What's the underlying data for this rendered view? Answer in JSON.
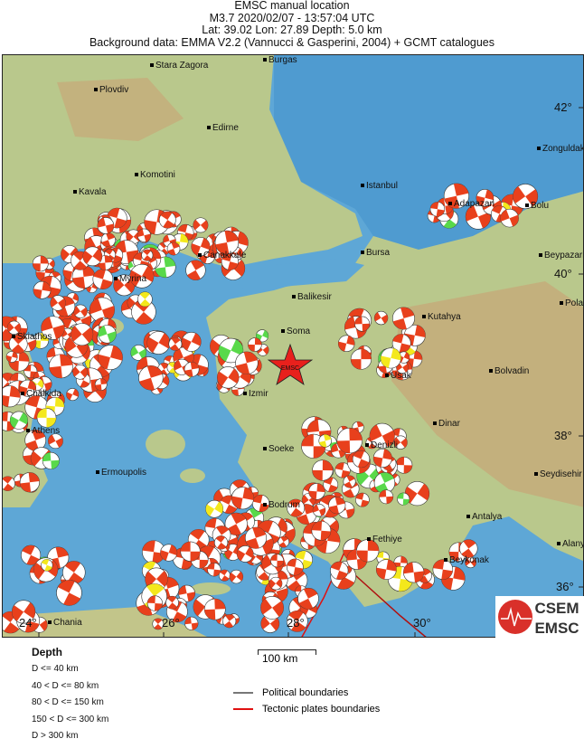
{
  "header": {
    "line1": "EMSC manual location",
    "line2": "M3.7  2020/02/07 - 13:57:04 UTC",
    "line3": "Lat: 39.02    Lon:  27.89     Depth:  5.0 km",
    "line4": "Background data: EMMA V2.2 (Vannucci & Gasperini, 2004) + GCMT catalogues"
  },
  "map": {
    "epicenter_label": "EMSC",
    "cities": [
      "Stara Zagora",
      "Burgas",
      "Plovdiv",
      "Edirne",
      "Komotini",
      "Kavala",
      "Istanbul",
      "Adapazari",
      "Zonguldak",
      "Bolu",
      "Beypazari",
      "Polatli",
      "Canakkale",
      "Bursa",
      "Myrina",
      "Balikesir",
      "Kutahya",
      "Skiathos",
      "Soma",
      "Usak",
      "Bolvadin",
      "Chalkida",
      "Izmir",
      "Athens",
      "Dinar",
      "Denizli",
      "Soeke",
      "Seydisehir",
      "Ermoupolis",
      "Bodrum",
      "Antalya",
      "Fethiye",
      "Alanya",
      "Beykonak",
      "Chania"
    ],
    "latitudes": [
      "42°",
      "40°",
      "38°",
      "36°"
    ],
    "longitudes": [
      "24°",
      "26°",
      "28°",
      "30°"
    ],
    "colors": {
      "sea": "#5ea7d6",
      "land": "#b9c88c",
      "highland": "#c7a878",
      "mechanism": "#e8401c",
      "depth_40_80": "#f4e81c",
      "depth_80_150": "#59d94a",
      "depth_150_300": "#2a3fd4",
      "tectonic": "#e01010",
      "political": "#777777"
    }
  },
  "legend": {
    "title": "Depth",
    "depth_classes": [
      "D <= 40 km",
      "40 < D <= 80 km",
      "80 < D <= 150 km",
      "150 < D <= 300 km",
      "D > 300 km"
    ],
    "scale": "100 km",
    "lines": [
      "Political boundaries",
      "Tectonic plates boundaries"
    ]
  },
  "logo": {
    "top": "CSEM",
    "bottom": "EMSC"
  }
}
